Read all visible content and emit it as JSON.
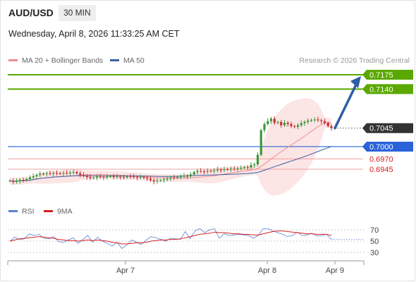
{
  "header": {
    "symbol": "AUD/USD",
    "timeframe": "30 MIN",
    "datetime": "Wednesday, April 8, 2026 11:33:25 AM CET"
  },
  "legend": {
    "items": [
      {
        "label": "MA 20 + Bollinger Bands",
        "color": "#f08c8c"
      },
      {
        "label": "MA 50",
        "color": "#3a5fa8"
      }
    ],
    "credit": "Research © 2026 Trading Central"
  },
  "rsi_legend": {
    "items": [
      {
        "label": "RSI",
        "color": "#5b7fd1"
      },
      {
        "label": "9MA",
        "color": "#d62020"
      }
    ]
  },
  "colors": {
    "target": "#5aa800",
    "pivot": "#2a62d8",
    "support": "#d62020",
    "arrow": "#2e5ea8",
    "current": "#333333"
  },
  "chart_data": [
    {
      "type": "candlestick",
      "title": "",
      "x_ticks": [
        "Apr 7",
        "Apr 8",
        "Apr 9"
      ],
      "ylim": [
        0.6895,
        0.72
      ],
      "levels": [
        {
          "value": 0.7175,
          "label": "0.7175",
          "kind": "target"
        },
        {
          "value": 0.714,
          "label": "0.7140",
          "kind": "target"
        },
        {
          "value": 0.7045,
          "label": "0.7045",
          "kind": "current"
        },
        {
          "value": 0.7,
          "label": "0.7000",
          "kind": "pivot"
        },
        {
          "value": 0.697,
          "label": "0.6970",
          "kind": "support"
        },
        {
          "value": 0.6945,
          "label": "0.6945",
          "kind": "support"
        }
      ],
      "closes": [
        0.6917,
        0.6914,
        0.6916,
        0.6919,
        0.6918,
        0.6921,
        0.6925,
        0.6928,
        0.6931,
        0.6934,
        0.6933,
        0.6935,
        0.6934,
        0.6936,
        0.6935,
        0.6934,
        0.6936,
        0.6935,
        0.6937,
        0.6938,
        0.6935,
        0.6931,
        0.6929,
        0.6926,
        0.6923,
        0.6924,
        0.6927,
        0.6926,
        0.6925,
        0.6927,
        0.6928,
        0.6926,
        0.6927,
        0.6926,
        0.6925,
        0.6928,
        0.6927,
        0.6926,
        0.6925,
        0.6926,
        0.6924,
        0.6922,
        0.6918,
        0.6915,
        0.6917,
        0.6918,
        0.692,
        0.6922,
        0.6925,
        0.6924,
        0.6926,
        0.6927,
        0.6929,
        0.6928,
        0.6932,
        0.6938,
        0.6941,
        0.694,
        0.6939,
        0.6941,
        0.694,
        0.6942,
        0.6944,
        0.6943,
        0.6945,
        0.6944,
        0.6946,
        0.6945,
        0.6947,
        0.6948,
        0.695,
        0.6949,
        0.6955,
        0.6957,
        0.698,
        0.704,
        0.7055,
        0.7062,
        0.7068,
        0.7058,
        0.706,
        0.7052,
        0.7058,
        0.7055,
        0.705,
        0.7048,
        0.7052,
        0.7057,
        0.706,
        0.7063,
        0.7065,
        0.7066,
        0.7064,
        0.7062,
        0.7058,
        0.705,
        0.7045
      ],
      "ma50_end": 0.7
    },
    {
      "type": "line",
      "title": "",
      "series": [
        {
          "name": "RSI",
          "values": [
            50,
            57,
            53,
            54,
            63,
            60,
            62,
            55,
            54,
            58,
            49,
            48,
            52,
            56,
            46,
            53,
            60,
            48,
            57,
            50,
            46,
            41,
            48,
            37,
            43,
            52,
            48,
            44,
            52,
            58,
            56,
            53,
            50,
            55,
            54,
            53,
            67,
            54,
            68,
            72,
            65,
            70,
            72,
            55,
            63,
            60,
            61,
            62,
            61,
            60,
            55,
            60,
            72,
            72,
            68,
            65,
            62,
            58,
            60,
            66,
            60,
            61,
            64,
            59,
            60,
            62,
            53
          ]
        },
        {
          "name": "9MA",
          "values": [
            50,
            52,
            54,
            55,
            56,
            57,
            58,
            57,
            56,
            55,
            53,
            52,
            51,
            51,
            50,
            51,
            52,
            51,
            52,
            51,
            50,
            48,
            47,
            45,
            45,
            46,
            47,
            47,
            48,
            50,
            51,
            52,
            52,
            53,
            53,
            54,
            56,
            58,
            60,
            62,
            63,
            64,
            66,
            65,
            65,
            64,
            63,
            63,
            62,
            62,
            61,
            61,
            63,
            65,
            67,
            68,
            68,
            67,
            66,
            65,
            64,
            63,
            63,
            62,
            62,
            62,
            60
          ]
        }
      ],
      "ylim": [
        20,
        80
      ],
      "y_ticks": [
        "70",
        "50",
        "30"
      ]
    }
  ]
}
